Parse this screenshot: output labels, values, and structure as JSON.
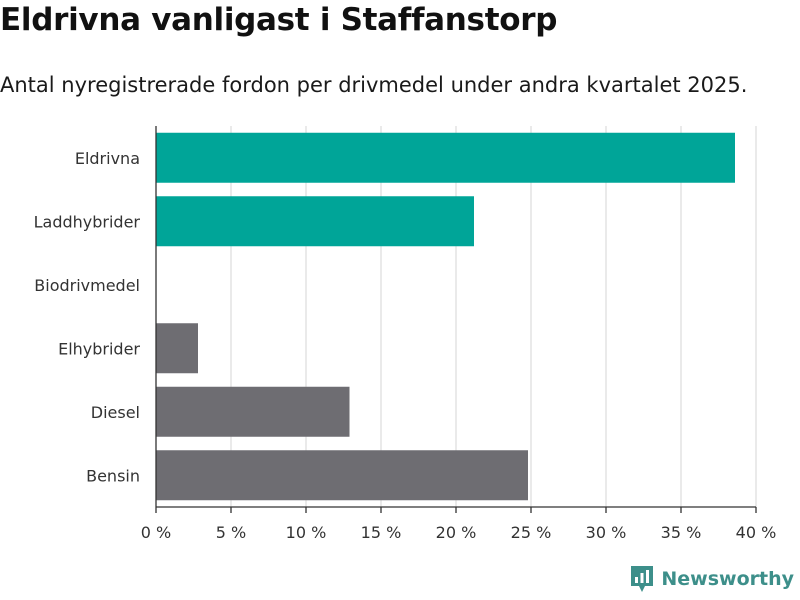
{
  "title": "Eldrivna vanligast i Staffanstorp",
  "subtitle": "Antal nyregistrerade fordon per drivmedel under andra kvartalet 2025.",
  "brand": {
    "name": "Newsworthy",
    "icon": "bar-chart-speech-bubble-icon"
  },
  "colors": {
    "highlight": "#00a598",
    "other": "#6e6d72",
    "grid": "#dddddd",
    "brand": "#3d8f8a"
  },
  "chart_data": {
    "type": "bar",
    "orientation": "horizontal",
    "categories": [
      "Eldrivna",
      "Laddhybrider",
      "Biodrivmedel",
      "Elhybrider",
      "Diesel",
      "Bensin"
    ],
    "values": [
      38.6,
      21.2,
      0,
      2.8,
      12.9,
      24.8
    ],
    "bar_colors": [
      "#00a598",
      "#00a598",
      "#6e6d72",
      "#6e6d72",
      "#6e6d72",
      "#6e6d72"
    ],
    "xlim": [
      0,
      40
    ],
    "xticks": [
      0,
      5,
      10,
      15,
      20,
      25,
      30,
      35,
      40
    ],
    "xtick_labels": [
      "0 %",
      "5 %",
      "10 %",
      "15 %",
      "20 %",
      "25 %",
      "30 %",
      "35 %",
      "40 %"
    ],
    "grid": true
  }
}
